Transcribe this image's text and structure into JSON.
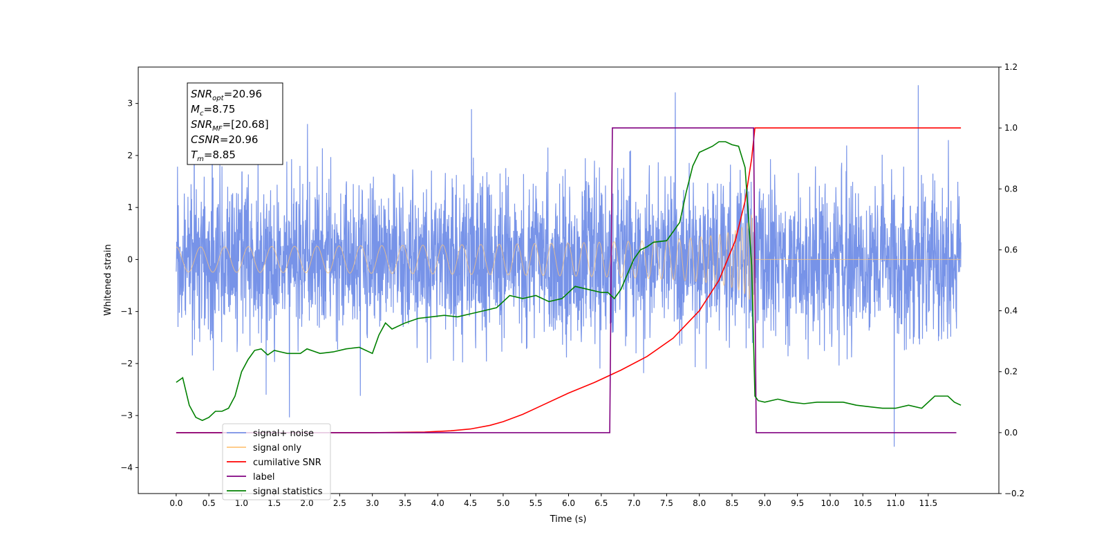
{
  "chart_data": {
    "type": "line",
    "xlabel": "Time (s)",
    "ylabel": "Whitened strain",
    "xlim": [
      -0.58,
      12.58
    ],
    "ylim": [
      -4.5,
      3.7
    ],
    "y2lim": [
      -0.2,
      1.2
    ],
    "xticks": [
      "0.0",
      "0.5",
      "1.0",
      "1.5",
      "2.0",
      "2.5",
      "3.0",
      "3.5",
      "4.0",
      "4.5",
      "5.0",
      "5.5",
      "6.0",
      "6.5",
      "7.0",
      "7.5",
      "8.0",
      "8.5",
      "9.0",
      "9.5",
      "10.0",
      "10.5",
      "11.0",
      "11.5"
    ],
    "yticks": [
      "3",
      "2",
      "1",
      "0",
      "−1",
      "−2",
      "−3",
      "−4"
    ],
    "y2ticks": [
      "1.2",
      "1.0",
      "0.8",
      "0.6",
      "0.4",
      "0.2",
      "0.0",
      "−0.2"
    ],
    "grid": false,
    "legend_position": "lower-left",
    "annotation": {
      "lines": [
        {
          "base": "SNR",
          "sub": "opt",
          "rest": "=20.96"
        },
        {
          "base": "M",
          "sub": "c",
          "rest": "=8.75"
        },
        {
          "base": "SNR",
          "sub": "MF",
          "rest": "=[20.68]"
        },
        {
          "base": "CSNR",
          "sub": "",
          "rest": "=20.96"
        },
        {
          "base": "T",
          "sub": "m",
          "rest": "=8.85"
        }
      ]
    },
    "series": [
      {
        "name": "signal+ noise",
        "color": "#7793e8",
        "axis": "left",
        "kind": "noise",
        "sigma": 0.75,
        "x_range": [
          0.0,
          12.0
        ]
      },
      {
        "name": "signal only",
        "color": "#ffc57a",
        "axis": "left",
        "kind": "chirp",
        "merger_time": 8.85,
        "peak_amplitude": 1.1,
        "x_range": [
          0.0,
          12.0
        ]
      },
      {
        "name": "cumilative SNR",
        "color": "#ff0000",
        "axis": "right",
        "x": [
          0.0,
          3.0,
          3.8,
          4.2,
          4.5,
          4.8,
          5.0,
          5.3,
          5.6,
          6.0,
          6.4,
          6.8,
          7.2,
          7.6,
          8.0,
          8.3,
          8.55,
          8.7,
          8.8,
          8.85,
          12.0
        ],
        "y": [
          0.0,
          0.0,
          0.002,
          0.006,
          0.012,
          0.024,
          0.036,
          0.06,
          0.09,
          0.13,
          0.165,
          0.205,
          0.25,
          0.31,
          0.4,
          0.5,
          0.63,
          0.76,
          0.9,
          1.0,
          1.0
        ]
      },
      {
        "name": "label",
        "color": "#800080",
        "axis": "right",
        "x": [
          0.0,
          6.63,
          6.67,
          8.83,
          8.87,
          11.93
        ],
        "y": [
          0.0,
          0.0,
          1.0,
          1.0,
          0.0,
          0.0
        ]
      },
      {
        "name": "signal statistics",
        "color": "#008000",
        "axis": "right",
        "x": [
          0.0,
          0.1,
          0.2,
          0.3,
          0.4,
          0.5,
          0.6,
          0.7,
          0.8,
          0.9,
          1.0,
          1.1,
          1.2,
          1.3,
          1.4,
          1.5,
          1.6,
          1.7,
          1.8,
          1.9,
          2.0,
          2.2,
          2.4,
          2.6,
          2.8,
          3.0,
          3.1,
          3.2,
          3.3,
          3.5,
          3.7,
          3.9,
          4.1,
          4.3,
          4.5,
          4.7,
          4.9,
          5.1,
          5.3,
          5.5,
          5.7,
          5.9,
          6.1,
          6.3,
          6.5,
          6.6,
          6.7,
          6.8,
          6.9,
          7.0,
          7.1,
          7.2,
          7.3,
          7.5,
          7.7,
          7.8,
          7.9,
          8.0,
          8.1,
          8.2,
          8.3,
          8.4,
          8.5,
          8.6,
          8.7,
          8.8,
          8.85,
          8.9,
          9.0,
          9.2,
          9.4,
          9.6,
          9.8,
          10.0,
          10.2,
          10.4,
          10.6,
          10.8,
          11.0,
          11.2,
          11.4,
          11.6,
          11.7,
          11.8,
          11.9,
          12.0
        ],
        "y": [
          0.165,
          0.18,
          0.09,
          0.05,
          0.04,
          0.05,
          0.07,
          0.07,
          0.08,
          0.12,
          0.2,
          0.24,
          0.27,
          0.275,
          0.255,
          0.27,
          0.265,
          0.26,
          0.26,
          0.26,
          0.275,
          0.26,
          0.265,
          0.275,
          0.28,
          0.26,
          0.32,
          0.36,
          0.34,
          0.36,
          0.375,
          0.38,
          0.385,
          0.38,
          0.39,
          0.4,
          0.41,
          0.45,
          0.44,
          0.45,
          0.43,
          0.44,
          0.48,
          0.47,
          0.46,
          0.46,
          0.44,
          0.47,
          0.52,
          0.57,
          0.6,
          0.61,
          0.625,
          0.63,
          0.69,
          0.79,
          0.875,
          0.92,
          0.93,
          0.94,
          0.955,
          0.955,
          0.945,
          0.94,
          0.87,
          0.55,
          0.12,
          0.105,
          0.1,
          0.11,
          0.1,
          0.095,
          0.1,
          0.1,
          0.1,
          0.09,
          0.085,
          0.08,
          0.08,
          0.09,
          0.08,
          0.12,
          0.12,
          0.12,
          0.1,
          0.09
        ]
      }
    ]
  }
}
